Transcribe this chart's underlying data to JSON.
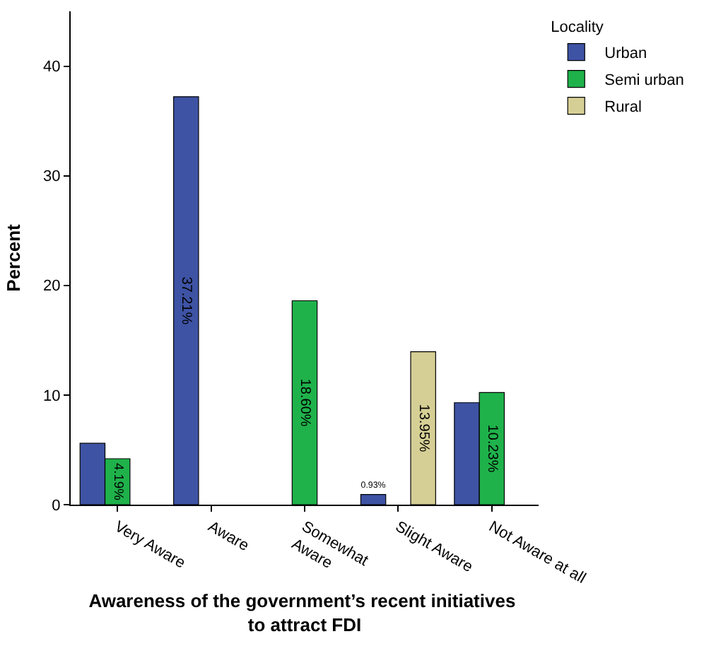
{
  "chart_data": {
    "type": "bar",
    "xlabel": "Awareness of the government’s recent initiatives to attract FDI",
    "ylabel": "Percent",
    "legend_title": "Locality",
    "legend": "right",
    "categories": [
      "Very Aware",
      "Aware",
      "Somewhat Aware",
      "Slight Aware",
      "Not Aware at all"
    ],
    "series": [
      {
        "name": "Urban",
        "color": "#3e53a4",
        "values": [
          5.6,
          37.21,
          null,
          0.93,
          9.3
        ],
        "value_labels": [
          null,
          "37.21%",
          null,
          "0.93%",
          null
        ]
      },
      {
        "name": "Semi urban",
        "color": "#1fb24b",
        "values": [
          4.19,
          null,
          18.6,
          null,
          10.23
        ],
        "value_labels": [
          "4.19%",
          null,
          "18.60%",
          null,
          "10.23%"
        ]
      },
      {
        "name": "Rural",
        "color": "#d6cf95",
        "values": [
          null,
          null,
          null,
          13.95,
          null
        ],
        "value_labels": [
          null,
          null,
          null,
          "13.95%",
          null
        ]
      }
    ],
    "ylim": [
      0,
      45
    ],
    "yticks": [
      0,
      10,
      20,
      30,
      40
    ],
    "grid": false
  }
}
